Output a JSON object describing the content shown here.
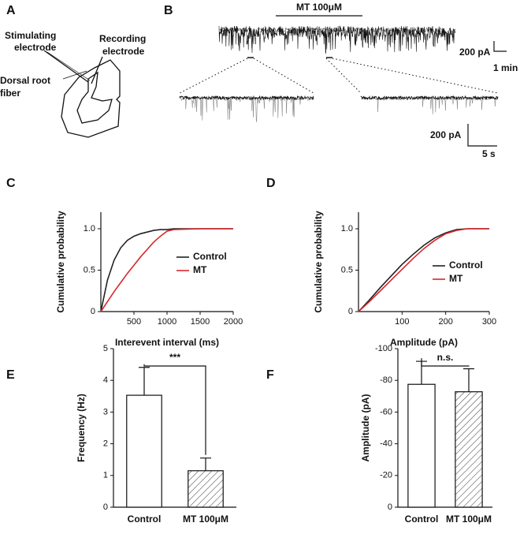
{
  "panels": {
    "A": {
      "label": "A",
      "stimulating": [
        "Stimulating",
        "electrode"
      ],
      "recording": [
        "Recording",
        "electrode"
      ],
      "dorsal": [
        "Dorsal root",
        "fiber"
      ]
    },
    "B": {
      "label": "B",
      "drug": "MT 100μM",
      "scale_overview": [
        "200 pA",
        "1 min"
      ],
      "scale_zoom": [
        "200 pA",
        "5 s"
      ]
    }
  },
  "chart_data": [
    {
      "panel": "C",
      "type": "line",
      "xlabel": "Interevent interval (ms)",
      "ylabel": "Cumulative probability",
      "x": [
        0,
        100,
        200,
        300,
        400,
        500,
        600,
        700,
        800,
        900,
        1000,
        1100,
        1500,
        2000
      ],
      "series": [
        {
          "name": "Control",
          "color": "#222222",
          "values": [
            0,
            0.38,
            0.62,
            0.77,
            0.86,
            0.91,
            0.94,
            0.96,
            0.98,
            0.99,
            0.99,
            1.0,
            1.0,
            1.0
          ]
        },
        {
          "name": "MT",
          "color": "#d9262b",
          "values": [
            0,
            0.12,
            0.24,
            0.35,
            0.46,
            0.56,
            0.66,
            0.75,
            0.84,
            0.91,
            0.97,
            0.99,
            1.0,
            1.0
          ]
        }
      ],
      "xlim": [
        0,
        2000
      ],
      "xticks": [
        500,
        1000,
        1500,
        2000
      ],
      "ylim": [
        0,
        1.2
      ],
      "yticks": [
        0,
        0.5,
        {
          "value": 1,
          "label": "1.0"
        }
      ],
      "legend": "right"
    },
    {
      "panel": "D",
      "type": "line",
      "xlabel": "Amplitude (pA)",
      "ylabel": "Cumulative probability",
      "x": [
        0,
        25,
        50,
        75,
        100,
        125,
        150,
        175,
        200,
        225,
        250,
        300
      ],
      "series": [
        {
          "name": "Control",
          "color": "#222222",
          "values": [
            0,
            0.14,
            0.29,
            0.43,
            0.57,
            0.69,
            0.8,
            0.89,
            0.95,
            0.99,
            1.0,
            1.0
          ]
        },
        {
          "name": "MT",
          "color": "#d9262b",
          "values": [
            0,
            0.12,
            0.25,
            0.38,
            0.51,
            0.64,
            0.76,
            0.86,
            0.94,
            0.98,
            1.0,
            1.0
          ]
        }
      ],
      "xlim": [
        0,
        300
      ],
      "xticks": [
        100,
        200,
        300
      ],
      "ylim": [
        0,
        1.2
      ],
      "yticks": [
        0,
        0.5,
        {
          "value": 1,
          "label": "1.0"
        }
      ],
      "legend": "lower right"
    },
    {
      "panel": "E",
      "type": "bar",
      "ylabel": "Frequency (Hz)",
      "categories": [
        "Control",
        "MT 100μM"
      ],
      "values": [
        3.53,
        1.15
      ],
      "errors": [
        0.88,
        0.4
      ],
      "hatch": [
        false,
        true
      ],
      "ylim": [
        0,
        5
      ],
      "yticks": [
        0,
        1,
        2,
        3,
        4,
        5
      ],
      "annotation": "***"
    },
    {
      "panel": "F",
      "type": "bar",
      "ylabel": "Amplitude (pA)",
      "categories": [
        "Control",
        "MT 100μM"
      ],
      "values": [
        -77.5,
        -72.8
      ],
      "errors": [
        14.5,
        14.5
      ],
      "hatch": [
        false,
        true
      ],
      "ylim": [
        0,
        -100
      ],
      "yticks": [
        0,
        -20,
        -40,
        -60,
        -80,
        -100
      ],
      "annotation": "n.s."
    }
  ]
}
